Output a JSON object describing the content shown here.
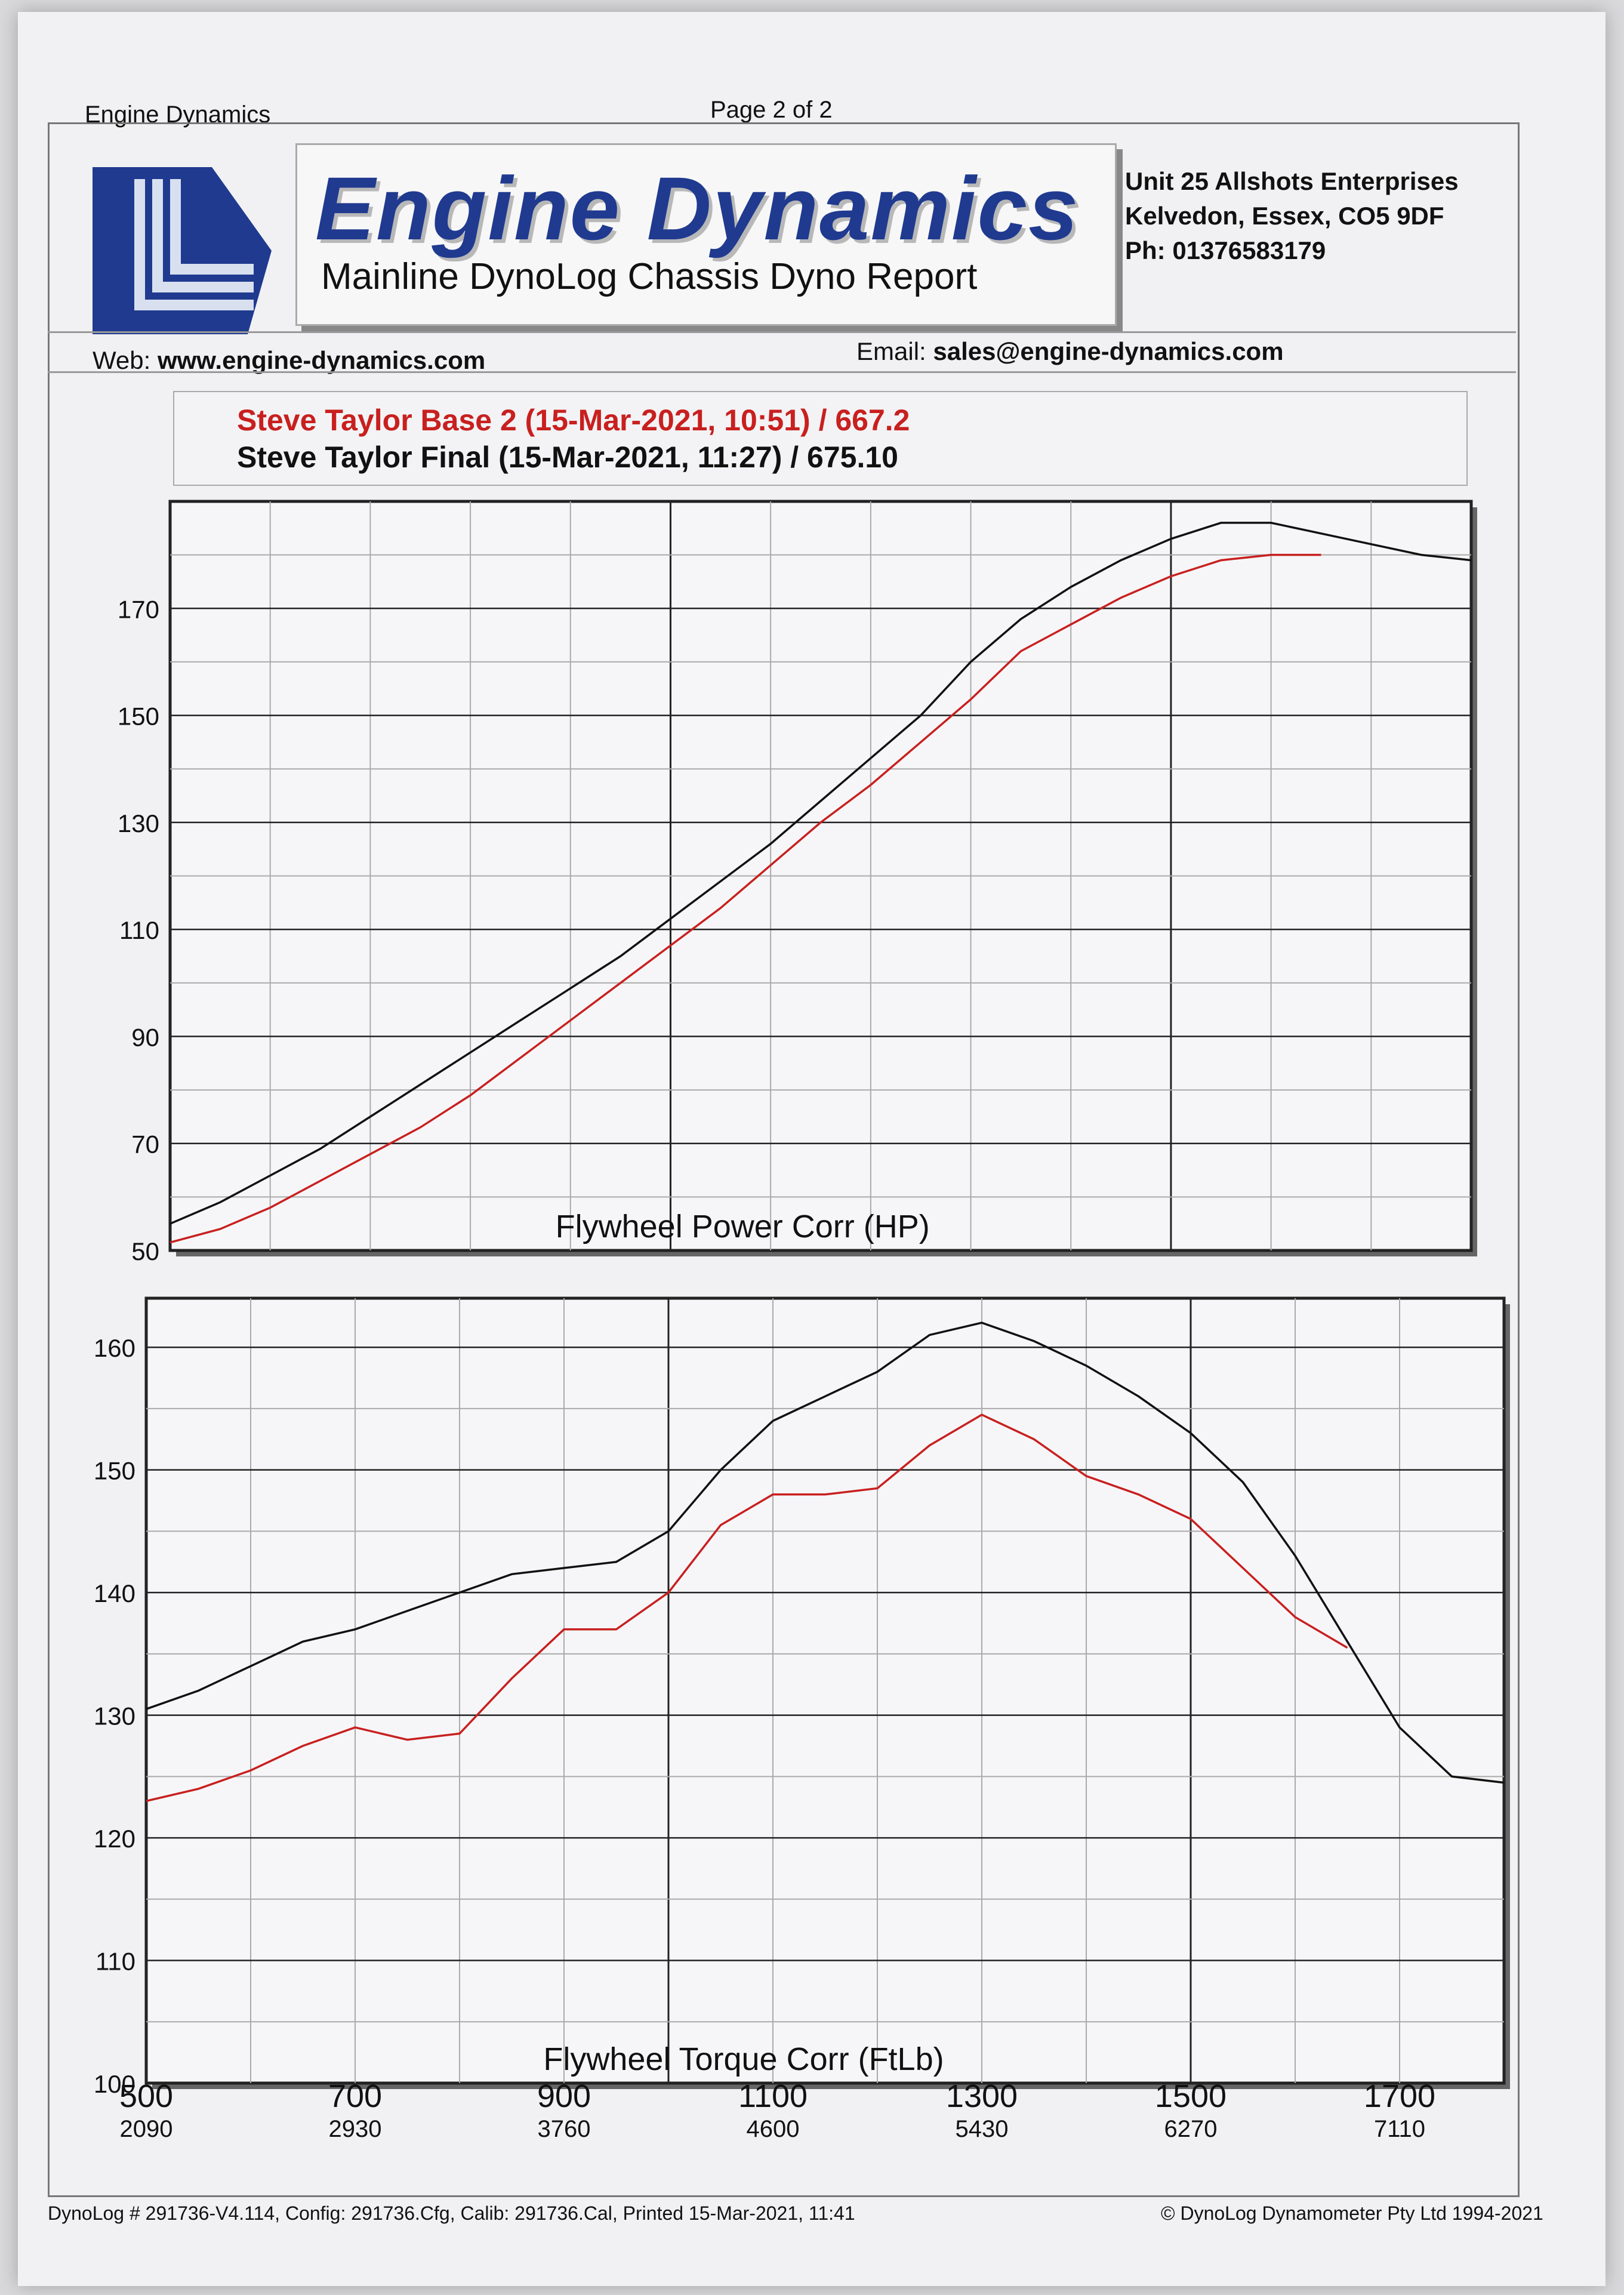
{
  "header": {
    "left": "Engine Dynamics",
    "page": "Page 2 of 2"
  },
  "logo": {
    "brand": "Engine Dynamics",
    "subtitle": "Mainline DynoLog Chassis Dyno Report",
    "icon": "engine-dynamics-logo-icon",
    "brand_color": "#1f3a8f"
  },
  "address": {
    "line1": "Unit 25 Allshots Enterprises",
    "line2": "Kelvedon, Essex, CO5 9DF",
    "line3": "Ph: 01376583179"
  },
  "contact": {
    "web_label": "Web:",
    "web": "www.engine-dynamics.com",
    "email_label": "Email:",
    "email": "sales@engine-dynamics.com"
  },
  "legend": [
    {
      "label": "Steve Taylor Base 2 (15-Mar-2021, 10:51) / 667.2",
      "color": "#c8201f"
    },
    {
      "label": "Steve Taylor Final (15-Mar-2021, 11:27) / 675.10",
      "color": "#111111"
    }
  ],
  "footer": {
    "left": "DynoLog # 291736-V4.114, Config: 291736.Cfg, Calib: 291736.Cal, Printed 15-Mar-2021, 11:41",
    "right": "© DynoLog Dynamometer Pty Ltd 1994-2021"
  },
  "chart_data": [
    {
      "type": "line",
      "title": "Flywheel Power Corr (HP)",
      "x_ticks": [
        500,
        700,
        900,
        1100,
        1300,
        1500,
        1700
      ],
      "x_ticks_secondary": [
        "2090",
        "2930",
        "3760",
        "4600",
        "5430",
        "6270",
        "7110"
      ],
      "xlim": [
        500,
        1800
      ],
      "ylim": [
        50,
        190
      ],
      "y_ticks": [
        50,
        70,
        90,
        110,
        130,
        150,
        170
      ],
      "grid": true,
      "series": [
        {
          "name": "Steve Taylor Base 2 (15-Mar-2021, 10:51) / 667.2",
          "color": "#c8201f",
          "x": [
            500,
            550,
            600,
            650,
            700,
            750,
            800,
            850,
            900,
            950,
            1000,
            1050,
            1100,
            1150,
            1200,
            1250,
            1300,
            1350,
            1400,
            1450,
            1500,
            1550,
            1600,
            1650
          ],
          "y": [
            51.5,
            54,
            58,
            63,
            68,
            73,
            79,
            86,
            93,
            100,
            107,
            114,
            122,
            130,
            137,
            145,
            153,
            162,
            167,
            172,
            176,
            179,
            180,
            180
          ]
        },
        {
          "name": "Steve Taylor Final (15-Mar-2021, 11:27) / 675.10",
          "color": "#111111",
          "x": [
            500,
            550,
            600,
            650,
            700,
            750,
            800,
            850,
            900,
            950,
            1000,
            1050,
            1100,
            1150,
            1200,
            1250,
            1300,
            1350,
            1400,
            1450,
            1500,
            1550,
            1600,
            1650,
            1700,
            1750,
            1800
          ],
          "y": [
            55,
            59,
            64,
            69,
            75,
            81,
            87,
            93,
            99,
            105,
            112,
            119,
            126,
            134,
            142,
            150,
            160,
            168,
            174,
            179,
            183,
            186,
            186,
            184,
            182,
            180,
            179
          ]
        }
      ]
    },
    {
      "type": "line",
      "title": "Flywheel Torque Corr (FtLb)",
      "x_ticks": [
        500,
        700,
        900,
        1100,
        1300,
        1500,
        1700
      ],
      "x_ticks_secondary": [
        "2090",
        "2930",
        "3760",
        "4600",
        "5430",
        "6270",
        "7110"
      ],
      "xlim": [
        500,
        1800
      ],
      "ylim": [
        100,
        164
      ],
      "y_ticks": [
        100,
        110,
        120,
        130,
        140,
        150,
        160
      ],
      "grid": true,
      "series": [
        {
          "name": "Steve Taylor Base 2 (15-Mar-2021, 10:51) / 667.2",
          "color": "#c8201f",
          "x": [
            500,
            550,
            600,
            650,
            700,
            750,
            800,
            850,
            900,
            950,
            1000,
            1050,
            1100,
            1150,
            1200,
            1250,
            1300,
            1350,
            1400,
            1450,
            1500,
            1550,
            1600,
            1650
          ],
          "y": [
            123,
            124,
            125.5,
            127.5,
            129,
            128,
            128.5,
            133,
            137,
            137,
            140,
            145.5,
            148,
            148,
            148.5,
            152,
            154.5,
            152.5,
            149.5,
            148,
            146,
            142,
            138,
            135.5
          ]
        },
        {
          "name": "Steve Taylor Final (15-Mar-2021, 11:27) / 675.10",
          "color": "#111111",
          "x": [
            500,
            550,
            600,
            650,
            700,
            750,
            800,
            850,
            900,
            950,
            1000,
            1050,
            1100,
            1150,
            1200,
            1250,
            1300,
            1350,
            1400,
            1450,
            1500,
            1550,
            1600,
            1650,
            1700,
            1750,
            1800
          ],
          "y": [
            130.5,
            132,
            134,
            136,
            137,
            138.5,
            140,
            141.5,
            142,
            142.5,
            145,
            150,
            154,
            156,
            158,
            161,
            162,
            160.5,
            158.5,
            156,
            153,
            149,
            143,
            136,
            129,
            125,
            124.5
          ]
        }
      ]
    }
  ]
}
